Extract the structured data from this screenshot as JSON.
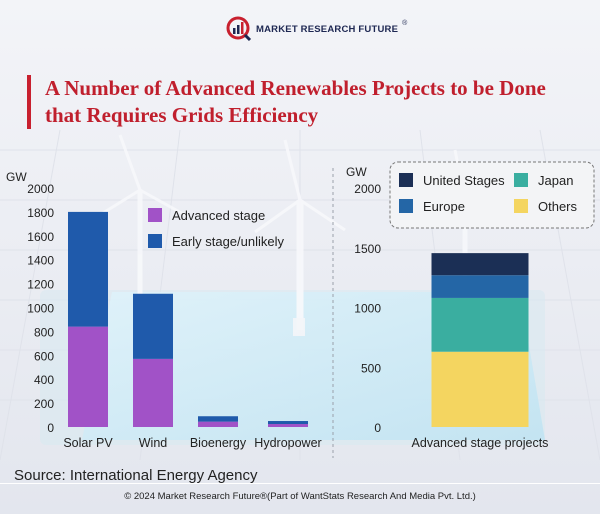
{
  "brand": {
    "name": "MARKET RESEARCH FUTURE",
    "reg": "®"
  },
  "title": {
    "line1": "A Number of Advanced Renewables Projects to be Done",
    "line2": "that Requires Grids Efficiency"
  },
  "source": "Source: International Energy Agency",
  "copyright": "© 2024 Market Research Future®(Part of WantStats Research And Media Pvt. Ltd.)",
  "colors": {
    "advanced": "#a152c7",
    "early": "#1f5aab",
    "united_stages": "#1b2f55",
    "europe": "#2466a6",
    "japan": "#3aaea0",
    "others": "#f4d560",
    "title": "#c01f2d"
  },
  "chart_data": [
    {
      "type": "bar",
      "stacked": true,
      "ylabel": "GW",
      "ylim": [
        0,
        2000
      ],
      "yticks": [
        0,
        200,
        400,
        600,
        800,
        1000,
        1200,
        1400,
        1600,
        1800,
        2000
      ],
      "categories": [
        "Solar PV",
        "Wind",
        "Bioenergy",
        "Hydropower"
      ],
      "series": [
        {
          "name": "Advanced stage",
          "values": [
            840,
            570,
            45,
            25
          ]
        },
        {
          "name": "Early stage/unlikely",
          "values": [
            960,
            545,
            45,
            25
          ]
        }
      ],
      "legend_position": "top-right"
    },
    {
      "type": "bar",
      "stacked": true,
      "ylabel": "GW",
      "ylim": [
        0,
        2000
      ],
      "yticks": [
        0,
        500,
        1000,
        1500,
        2000
      ],
      "categories": [
        "Advanced stage projects"
      ],
      "series": [
        {
          "name": "Others",
          "values": [
            630
          ]
        },
        {
          "name": "Japan",
          "values": [
            450
          ]
        },
        {
          "name": "Europe",
          "values": [
            190
          ]
        },
        {
          "name": "United Stages",
          "values": [
            185
          ]
        }
      ],
      "legend_order": [
        "United Stages",
        "Japan",
        "Europe",
        "Others"
      ],
      "legend_position": "top"
    }
  ]
}
